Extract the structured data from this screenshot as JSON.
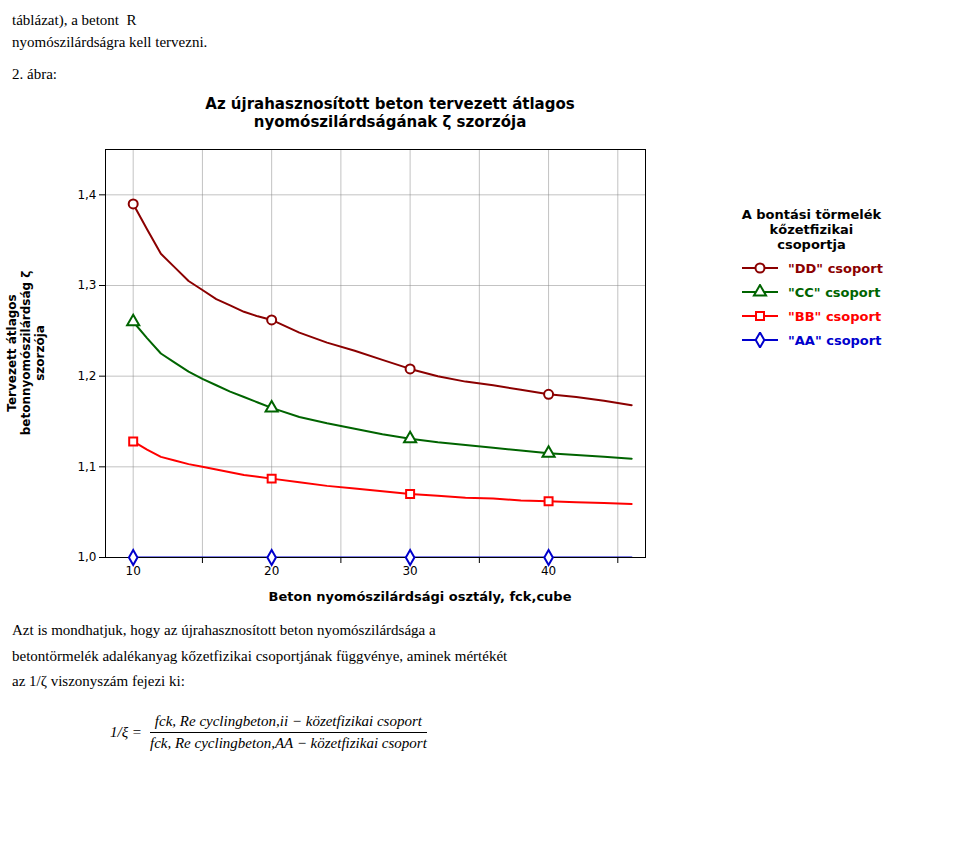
{
  "chart_data": {
    "type": "line",
    "title": "Az újrahasznosított beton tervezett átlagos\nnyomószilárdságának ζ szorzója",
    "xlabel": "Beton nyomószilárdsági osztály, fck,cube",
    "ylabel": "Tervezett átlagos\nbetonnyomószilárdság ζ\nszorzója",
    "legend_title": "A bontási törmelék\nkőzetfizikai\ncsoportja",
    "legend": "right",
    "grid": true,
    "xlim": [
      8,
      47
    ],
    "ylim": [
      1.0,
      1.45
    ],
    "xticks": [
      10,
      {
        "value": 15,
        "label": null
      },
      20,
      {
        "value": 25,
        "label": null
      },
      30,
      {
        "value": 35,
        "label": null
      },
      40,
      {
        "value": 45,
        "label": null
      }
    ],
    "yticks": [
      {
        "value": 1.0,
        "label": "1,0"
      },
      {
        "value": 1.1,
        "label": "1,1"
      },
      {
        "value": 1.2,
        "label": "1,2"
      },
      {
        "value": 1.3,
        "label": "1,3"
      },
      {
        "value": 1.4,
        "label": "1,4"
      }
    ],
    "annotations": [
      "táblázat), a betont  R",
      "nyomószilárdságra kell tervezni.",
      "2. ábra:",
      "Azt is mondhatjuk, hogy az újrahasznosított beton nyomószilárdsága a",
      "betontörmelék adalékanyag kőzetfizikai csoportjának függvénye, aminek mértékét",
      "az 1/ζ viszonyszám fejezi ki:",
      "1/ξ =",
      "fck, Re cyclingbeton,ii − közetfizikai csoport",
      "fck, Re cyclingbeton,AA − közetfizikai csoport"
    ],
    "series": [
      {
        "name": "\"DD\" csoport",
        "color": "#8B0000",
        "marker": "circle",
        "x": [
          10,
          11,
          12,
          13,
          14,
          15,
          16,
          17,
          18,
          19,
          20,
          22,
          24,
          26,
          28,
          30,
          32,
          34,
          36,
          38,
          40,
          42,
          44,
          46
        ],
        "values": [
          1.39,
          1.362,
          1.335,
          1.32,
          1.305,
          1.295,
          1.285,
          1.278,
          1.271,
          1.266,
          1.262,
          1.248,
          1.237,
          1.228,
          1.218,
          1.208,
          1.2,
          1.194,
          1.19,
          1.185,
          1.18,
          1.177,
          1.173,
          1.168
        ],
        "marker_x": [
          10,
          20,
          30,
          40
        ],
        "marker_values": [
          1.39,
          1.262,
          1.208,
          1.18
        ]
      },
      {
        "name": "\"CC\" csoport",
        "color": "#006400",
        "marker": "triangle",
        "x": [
          10,
          11,
          12,
          13,
          14,
          15,
          16,
          17,
          18,
          19,
          20,
          22,
          24,
          26,
          28,
          30,
          32,
          34,
          36,
          38,
          40,
          42,
          44,
          46
        ],
        "values": [
          1.26,
          1.242,
          1.225,
          1.215,
          1.205,
          1.197,
          1.19,
          1.183,
          1.177,
          1.171,
          1.165,
          1.155,
          1.148,
          1.142,
          1.136,
          1.131,
          1.127,
          1.124,
          1.121,
          1.118,
          1.115,
          1.113,
          1.111,
          1.109
        ],
        "marker_x": [
          10,
          20,
          30,
          40
        ],
        "marker_values": [
          1.26,
          1.165,
          1.131,
          1.115
        ]
      },
      {
        "name": "\"BB\" csoport",
        "color": "#FF0000",
        "marker": "square",
        "x": [
          10,
          11,
          12,
          13,
          14,
          15,
          16,
          17,
          18,
          19,
          20,
          22,
          24,
          26,
          28,
          30,
          32,
          34,
          36,
          38,
          40,
          42,
          44,
          46
        ],
        "values": [
          1.128,
          1.119,
          1.111,
          1.107,
          1.103,
          1.1,
          1.097,
          1.094,
          1.091,
          1.089,
          1.087,
          1.083,
          1.079,
          1.076,
          1.073,
          1.07,
          1.068,
          1.066,
          1.065,
          1.063,
          1.062,
          1.061,
          1.06,
          1.059
        ],
        "marker_x": [
          10,
          20,
          30,
          40
        ],
        "marker_values": [
          1.128,
          1.087,
          1.07,
          1.062
        ]
      },
      {
        "name": "\"AA\" csoport",
        "color": "#0000CD",
        "marker": "diamond",
        "x": [
          10,
          20,
          30,
          40,
          46
        ],
        "values": [
          1.0,
          1.0,
          1.0,
          1.0,
          1.0
        ],
        "marker_x": [
          10,
          20,
          30,
          40
        ],
        "marker_values": [
          1.0,
          1.0,
          1.0,
          1.0
        ]
      }
    ]
  }
}
